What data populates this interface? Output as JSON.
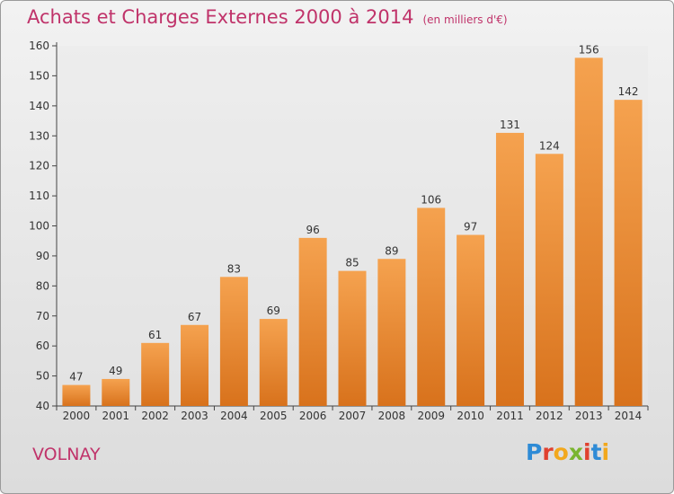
{
  "header": {
    "title": "Achats et Charges Externes 2000 à 2014",
    "unit": "(en milliers d'€)"
  },
  "footer": {
    "commune": "VOLNAY",
    "logo_text": "Proxiti",
    "logo_colors": [
      "#2e8bd6",
      "#e0412f",
      "#f2a81d",
      "#7ab530",
      "#e0412f",
      "#2e8bd6",
      "#f2a81d"
    ]
  },
  "colors": {
    "bar_top": "#f5a24f",
    "bar_bottom": "#d8721c",
    "title": "#c0336a"
  },
  "chart_data": {
    "type": "bar",
    "title": "Achats et Charges Externes 2000 à 2014",
    "subtitle": "(en milliers d'€)",
    "xlabel": "",
    "ylabel": "",
    "categories": [
      "2000",
      "2001",
      "2002",
      "2003",
      "2004",
      "2005",
      "2006",
      "2007",
      "2008",
      "2009",
      "2010",
      "2011",
      "2012",
      "2013",
      "2014"
    ],
    "values": [
      47,
      49,
      61,
      67,
      83,
      69,
      96,
      85,
      89,
      106,
      97,
      131,
      124,
      156,
      142
    ],
    "ylim": [
      40,
      160
    ],
    "yticks": [
      40,
      50,
      60,
      70,
      80,
      90,
      100,
      110,
      120,
      130,
      140,
      150,
      160
    ],
    "grid": false,
    "legend": "none"
  }
}
